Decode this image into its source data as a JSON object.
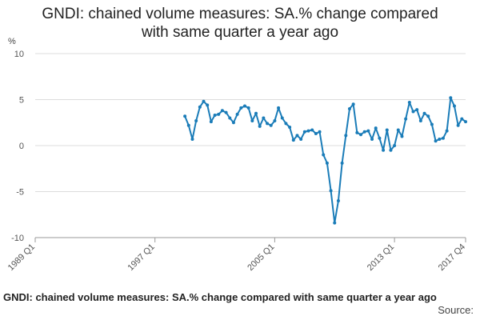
{
  "header": {
    "title_line1": "GNDI: chained volume measures: SA.% change compared",
    "title_line2": "with same quarter a year ago",
    "y_unit": "%"
  },
  "footer": {
    "title": "GNDI: chained volume measures: SA.% change compared with same quarter a year ago",
    "source": "Source:"
  },
  "colors": {
    "line": "#1a7cb8",
    "grid": "#dddddd",
    "axis": "#999999"
  },
  "chart_data": {
    "type": "line",
    "title": "GNDI: chained volume measures: SA.% change compared with same quarter a year ago",
    "ylabel": "%",
    "ylim": [
      -10,
      10
    ],
    "yticks": [
      10,
      5,
      0,
      -5,
      -10
    ],
    "x_range": [
      "1989 Q1",
      "2017 Q4"
    ],
    "xticks": [
      "1989 Q1",
      "1997 Q1",
      "2005 Q1",
      "2013 Q1",
      "2017 Q4"
    ],
    "grid": true,
    "series": [
      {
        "x": [
          "1999 Q1",
          "1999 Q2",
          "1999 Q3",
          "1999 Q4",
          "2000 Q1",
          "2000 Q2",
          "2000 Q3",
          "2000 Q4",
          "2001 Q1",
          "2001 Q2",
          "2001 Q3",
          "2001 Q4",
          "2002 Q1",
          "2002 Q2",
          "2002 Q3",
          "2002 Q4",
          "2003 Q1",
          "2003 Q2",
          "2003 Q3",
          "2003 Q4",
          "2004 Q1",
          "2004 Q2",
          "2004 Q3",
          "2004 Q4",
          "2005 Q1",
          "2005 Q2",
          "2005 Q3",
          "2005 Q4",
          "2006 Q1",
          "2006 Q2",
          "2006 Q3",
          "2006 Q4",
          "2007 Q1",
          "2007 Q2",
          "2007 Q3",
          "2007 Q4",
          "2008 Q1",
          "2008 Q2",
          "2008 Q3",
          "2008 Q4",
          "2009 Q1",
          "2009 Q2",
          "2009 Q3",
          "2009 Q4",
          "2010 Q1",
          "2010 Q2",
          "2010 Q3",
          "2010 Q4",
          "2011 Q1",
          "2011 Q2",
          "2011 Q3",
          "2011 Q4",
          "2012 Q1",
          "2012 Q2",
          "2012 Q3",
          "2012 Q4",
          "2013 Q1",
          "2013 Q2",
          "2013 Q3",
          "2013 Q4",
          "2014 Q1",
          "2014 Q2",
          "2014 Q3",
          "2014 Q4",
          "2015 Q1",
          "2015 Q2",
          "2015 Q3",
          "2015 Q4",
          "2016 Q1",
          "2016 Q2",
          "2016 Q3",
          "2016 Q4",
          "2017 Q1",
          "2017 Q2",
          "2017 Q3",
          "2017 Q4"
        ],
        "values": [
          3.2,
          2.2,
          0.7,
          2.7,
          4.2,
          4.8,
          4.4,
          2.6,
          3.3,
          3.4,
          3.8,
          3.6,
          3.0,
          2.5,
          3.4,
          4.1,
          4.3,
          4.1,
          2.7,
          3.5,
          2.1,
          3.0,
          2.4,
          2.2,
          2.7,
          4.1,
          3.0,
          2.4,
          2.0,
          0.6,
          1.1,
          0.7,
          1.5,
          1.6,
          1.7,
          1.3,
          1.5,
          -1.0,
          -1.9,
          -4.9,
          -8.4,
          -6.0,
          -1.9,
          1.1,
          4.0,
          4.5,
          1.4,
          1.2,
          1.5,
          1.6,
          0.7,
          1.9,
          0.8,
          -0.5,
          1.7,
          -0.5,
          0.0,
          1.7,
          1.0,
          2.9,
          4.7,
          3.7,
          3.9,
          2.7,
          3.5,
          3.2,
          2.3,
          0.5,
          0.7,
          0.8,
          1.6,
          5.2,
          4.3,
          2.2,
          2.9,
          2.6
        ]
      }
    ]
  }
}
